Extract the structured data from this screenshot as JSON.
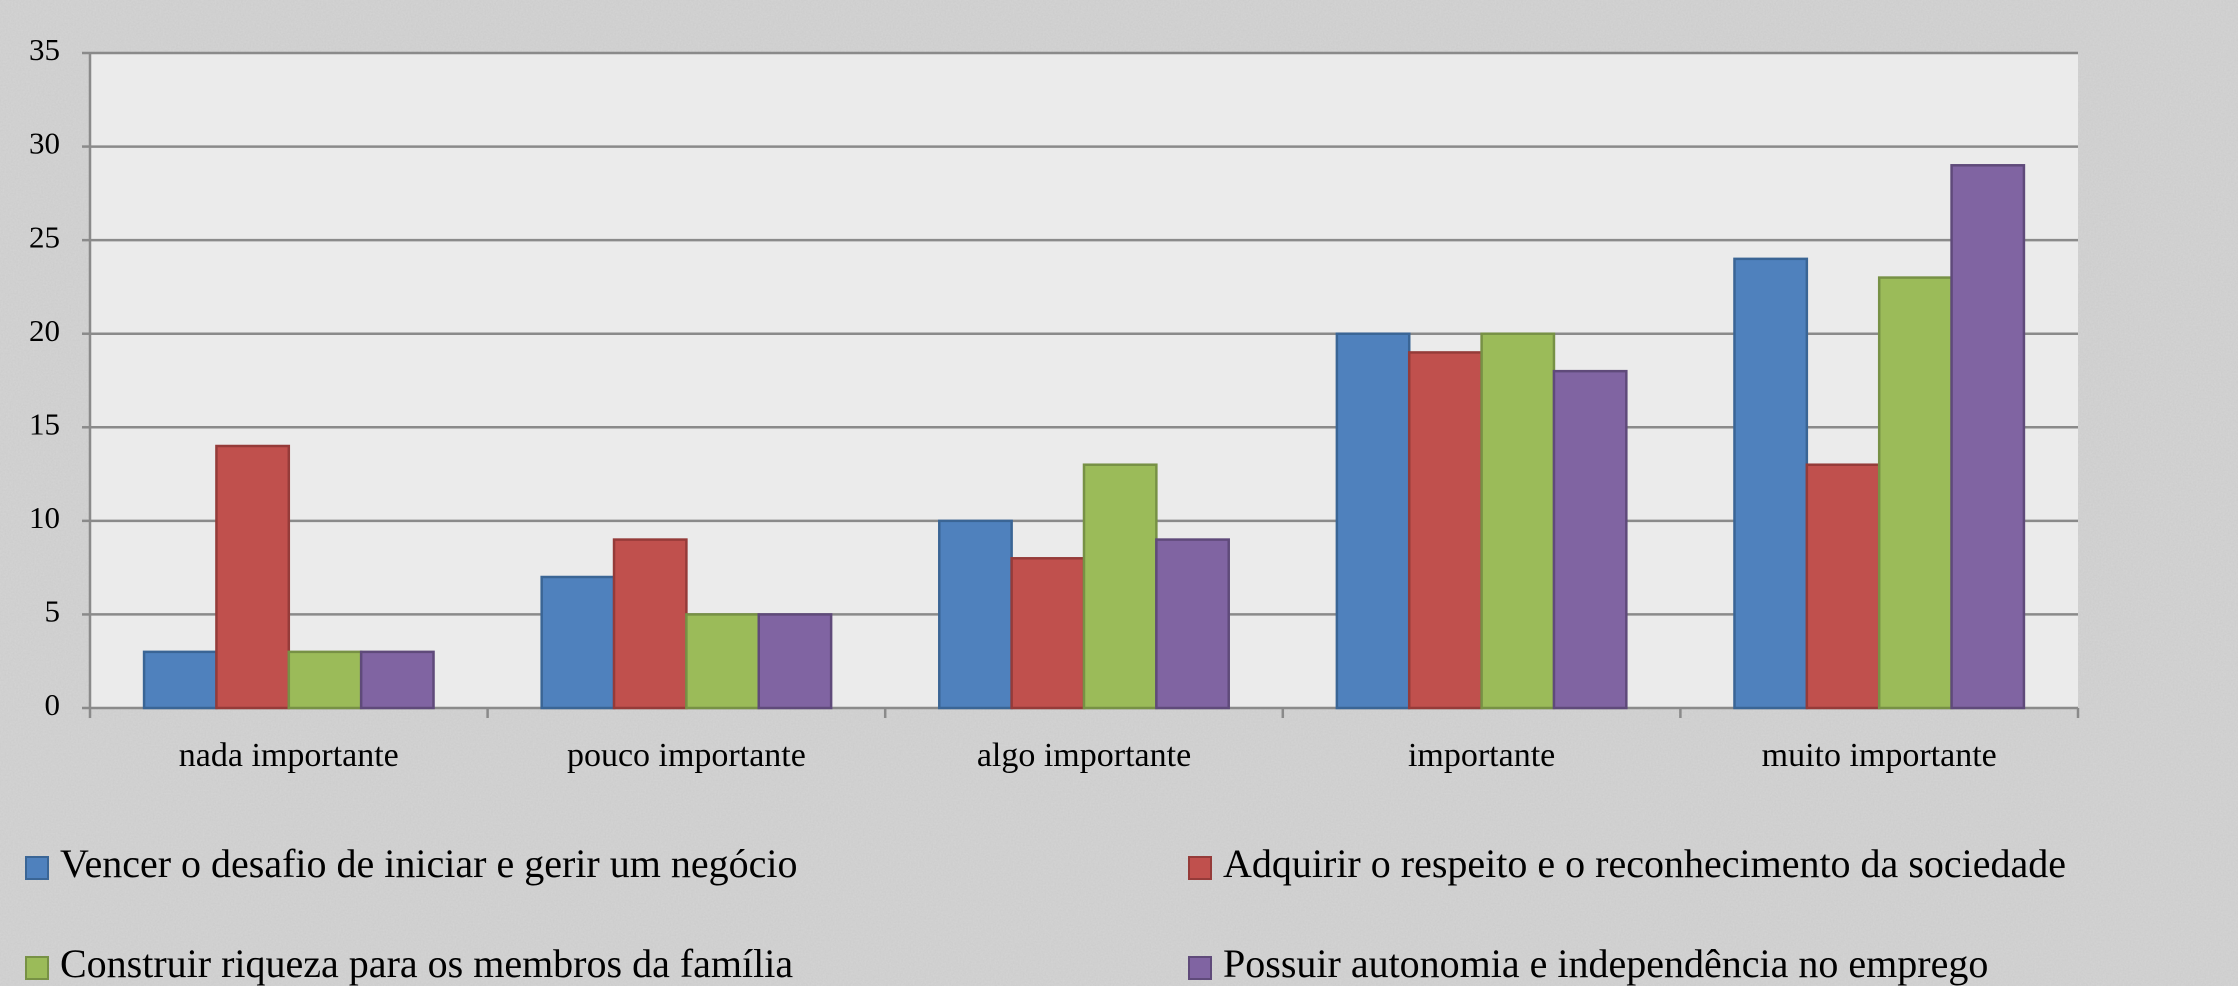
{
  "chart_data": {
    "type": "bar",
    "categories": [
      "nada importante",
      "pouco importante",
      "algo importante",
      "importante",
      "muito importante"
    ],
    "series": [
      {
        "name": "Vencer o desafio de iniciar e gerir um negócio",
        "color": "#4f81bd",
        "values": [
          3,
          7,
          10,
          20,
          24
        ]
      },
      {
        "name": "Adquirir o respeito e o reconhecimento da sociedade",
        "color": "#c0504d",
        "values": [
          14,
          9,
          8,
          19,
          13
        ]
      },
      {
        "name": "Construir riqueza para os membros da família",
        "color": "#9bbb59",
        "values": [
          3,
          5,
          13,
          20,
          23
        ]
      },
      {
        "name": "Possuir autonomia e independência no emprego",
        "color": "#8064a2",
        "values": [
          3,
          5,
          9,
          18,
          29
        ]
      }
    ],
    "ylim": [
      0,
      35
    ],
    "yticks": [
      0,
      5,
      10,
      15,
      20,
      25,
      30,
      35
    ],
    "grid": true
  }
}
